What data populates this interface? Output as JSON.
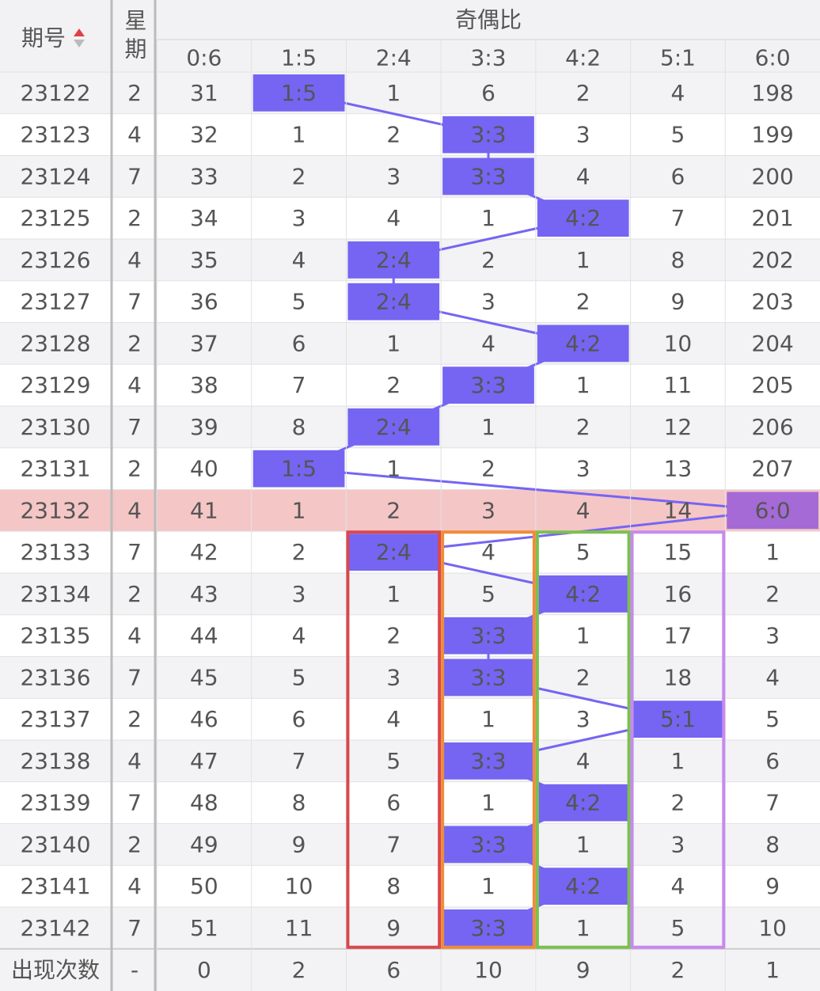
{
  "header": {
    "period_label": "期号",
    "weekday_label": "星期",
    "group_label": "奇偶比",
    "columns": [
      "0:6",
      "1:5",
      "2:4",
      "3:3",
      "4:2",
      "5:1",
      "6:0"
    ]
  },
  "rows": [
    {
      "period": "23122",
      "weekday": 2,
      "cells": [
        31,
        "1:5",
        1,
        6,
        2,
        4,
        198
      ]
    },
    {
      "period": "23123",
      "weekday": 4,
      "cells": [
        32,
        1,
        2,
        "3:3",
        3,
        5,
        199
      ]
    },
    {
      "period": "23124",
      "weekday": 7,
      "cells": [
        33,
        2,
        3,
        "3:3",
        4,
        6,
        200
      ]
    },
    {
      "period": "23125",
      "weekday": 2,
      "cells": [
        34,
        3,
        4,
        1,
        "4:2",
        7,
        201
      ]
    },
    {
      "period": "23126",
      "weekday": 4,
      "cells": [
        35,
        4,
        "2:4",
        2,
        1,
        8,
        202
      ]
    },
    {
      "period": "23127",
      "weekday": 7,
      "cells": [
        36,
        5,
        "2:4",
        3,
        2,
        9,
        203
      ]
    },
    {
      "period": "23128",
      "weekday": 2,
      "cells": [
        37,
        6,
        1,
        4,
        "4:2",
        10,
        204
      ]
    },
    {
      "period": "23129",
      "weekday": 4,
      "cells": [
        38,
        7,
        2,
        "3:3",
        1,
        11,
        205
      ]
    },
    {
      "period": "23130",
      "weekday": 7,
      "cells": [
        39,
        8,
        "2:4",
        1,
        2,
        12,
        206
      ]
    },
    {
      "period": "23131",
      "weekday": 2,
      "cells": [
        40,
        "1:5",
        1,
        2,
        3,
        13,
        207
      ]
    },
    {
      "period": "23132",
      "weekday": 4,
      "cells": [
        41,
        1,
        2,
        3,
        4,
        14,
        "6:0"
      ],
      "highlight": true
    },
    {
      "period": "23133",
      "weekday": 7,
      "cells": [
        42,
        2,
        "2:4",
        4,
        5,
        15,
        1
      ]
    },
    {
      "period": "23134",
      "weekday": 2,
      "cells": [
        43,
        3,
        1,
        5,
        "4:2",
        16,
        2
      ]
    },
    {
      "period": "23135",
      "weekday": 4,
      "cells": [
        44,
        4,
        2,
        "3:3",
        1,
        17,
        3
      ]
    },
    {
      "period": "23136",
      "weekday": 7,
      "cells": [
        45,
        5,
        3,
        "3:3",
        2,
        18,
        4
      ]
    },
    {
      "period": "23137",
      "weekday": 2,
      "cells": [
        46,
        6,
        4,
        1,
        3,
        "5:1",
        5
      ]
    },
    {
      "period": "23138",
      "weekday": 4,
      "cells": [
        47,
        7,
        5,
        "3:3",
        4,
        1,
        6
      ]
    },
    {
      "period": "23139",
      "weekday": 7,
      "cells": [
        48,
        8,
        6,
        1,
        "4:2",
        2,
        7
      ]
    },
    {
      "period": "23140",
      "weekday": 2,
      "cells": [
        49,
        9,
        7,
        "3:3",
        1,
        3,
        8
      ]
    },
    {
      "period": "23141",
      "weekday": 4,
      "cells": [
        50,
        10,
        8,
        1,
        "4:2",
        4,
        9
      ]
    },
    {
      "period": "23142",
      "weekday": 7,
      "cells": [
        51,
        11,
        9,
        "3:3",
        1,
        5,
        10
      ]
    }
  ],
  "footer": {
    "label": "出现次数",
    "weekday": "-",
    "counts": [
      0,
      2,
      6,
      10,
      9,
      2,
      1
    ]
  }
}
